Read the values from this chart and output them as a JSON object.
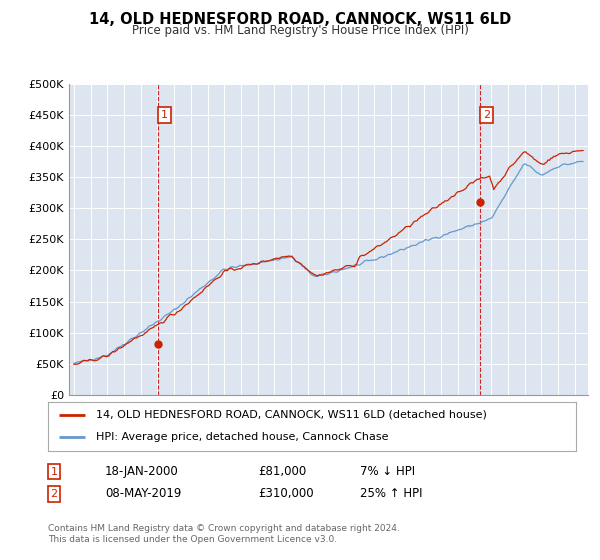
{
  "title": "14, OLD HEDNESFORD ROAD, CANNOCK, WS11 6LD",
  "subtitle": "Price paid vs. HM Land Registry's House Price Index (HPI)",
  "legend_line1": "14, OLD HEDNESFORD ROAD, CANNOCK, WS11 6LD (detached house)",
  "legend_line2": "HPI: Average price, detached house, Cannock Chase",
  "transaction1_date": "18-JAN-2000",
  "transaction1_price": 81000,
  "transaction1_label": "7% ↓ HPI",
  "transaction2_date": "08-MAY-2019",
  "transaction2_price": 310000,
  "transaction2_label": "25% ↑ HPI",
  "footer": "Contains HM Land Registry data © Crown copyright and database right 2024.\nThis data is licensed under the Open Government Licence v3.0.",
  "hpi_color": "#6699cc",
  "price_color": "#cc2200",
  "bg_color": "#dde5f0",
  "grid_color": "#ffffff",
  "vline_color": "#cc0000",
  "box_color": "#cc2200",
  "ylim": [
    0,
    500000
  ],
  "yticks": [
    0,
    50000,
    100000,
    150000,
    200000,
    250000,
    300000,
    350000,
    400000,
    450000,
    500000
  ],
  "xmin": 1994.7,
  "xmax": 2025.8
}
